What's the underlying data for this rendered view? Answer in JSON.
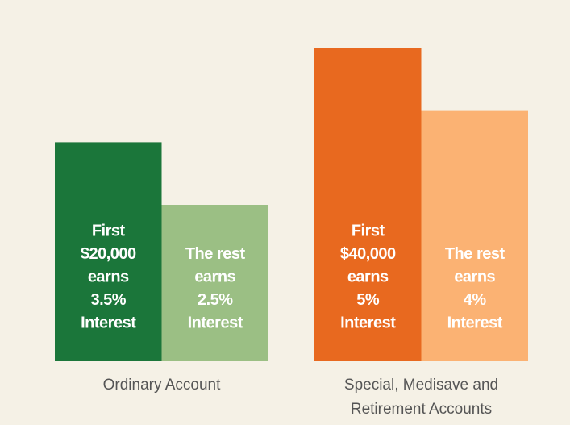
{
  "chart_data": {
    "type": "bar",
    "categories": [
      [
        "Ordinary Account"
      ],
      [
        "Special, Medisave and",
        "Retirement Accounts"
      ]
    ],
    "series": [
      {
        "colors": [
          "#1b763a",
          "#e8691f"
        ],
        "values": [
          3.5,
          5
        ],
        "value_labels": [
          [
            "First",
            "$20,000",
            "earns",
            "3.5%",
            "Interest"
          ],
          [
            "First",
            "$40,000",
            "earns",
            "5%",
            "Interest"
          ]
        ]
      },
      {
        "colors": [
          "#9bbf84",
          "#fbb273"
        ],
        "values": [
          2.5,
          4
        ],
        "value_labels": [
          [
            "The rest",
            "earns",
            "2.5%",
            "Interest"
          ],
          [
            "The rest",
            "earns",
            "4%",
            "Interest"
          ]
        ]
      }
    ]
  }
}
